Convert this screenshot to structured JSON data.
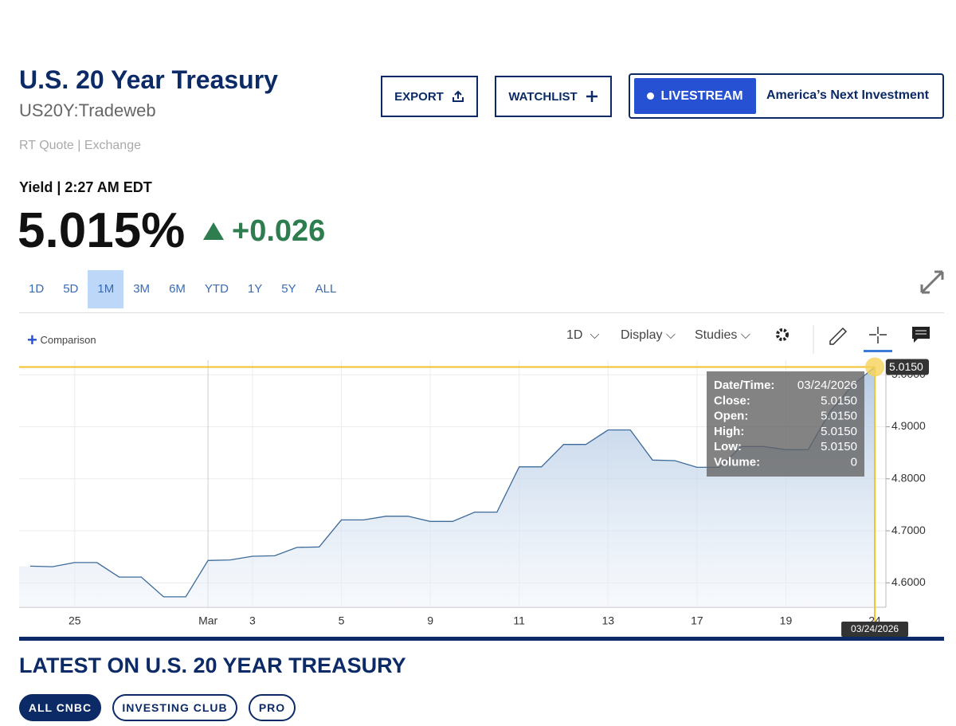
{
  "header": {
    "title": "U.S. 20 Year Treasury",
    "symbol": "US20Y:Tradeweb",
    "quote_source": "RT Quote | Exchange"
  },
  "buttons": {
    "export": "EXPORT",
    "watchlist": "WATCHLIST",
    "livestream": "LIVESTREAM",
    "promo": "America’s Next Investment"
  },
  "quote": {
    "label": "Yield | 2:27 AM EDT",
    "price": "5.015%",
    "change": "+0.026"
  },
  "ranges": [
    "1D",
    "5D",
    "1M",
    "3M",
    "6M",
    "YTD",
    "1Y",
    "5Y",
    "ALL"
  ],
  "active_range": "1M",
  "toolbar": {
    "comparison": "Comparison",
    "interval": "1D",
    "display": "Display",
    "studies": "Studies"
  },
  "chart_data": {
    "type": "line",
    "color": "#3d6b9a",
    "grid": true,
    "categories": [
      null,
      null,
      "25",
      null,
      null,
      null,
      null,
      null,
      "Mar",
      null,
      "3",
      null,
      null,
      null,
      "5",
      null,
      null,
      null,
      "9",
      null,
      null,
      null,
      "11",
      null,
      null,
      null,
      "13",
      null,
      null,
      null,
      "17",
      null,
      null,
      null,
      "19",
      null,
      null,
      null,
      "24"
    ],
    "values": [
      4.632,
      4.631,
      4.639,
      4.639,
      4.611,
      4.611,
      4.573,
      4.573,
      4.643,
      4.644,
      4.651,
      4.652,
      4.668,
      4.669,
      4.721,
      4.721,
      4.728,
      4.728,
      4.718,
      4.718,
      4.736,
      4.736,
      4.823,
      4.823,
      4.866,
      4.866,
      4.894,
      4.894,
      4.836,
      4.835,
      4.822,
      4.822,
      4.862,
      4.862,
      4.856,
      4.856,
      4.93,
      4.98,
      5.015
    ],
    "ylim": [
      4.553,
      5.028
    ],
    "yticks": [
      {
        "value": 4.6,
        "label": "4.6000"
      },
      {
        "value": 4.7,
        "label": "4.7000"
      },
      {
        "value": 4.8,
        "label": "4.8000"
      },
      {
        "value": 4.9,
        "label": "4.9000"
      },
      {
        "value": 5.0,
        "label": "5.0000"
      }
    ],
    "crosshair": {
      "value": 5.015,
      "label": "5.0150",
      "date": "03/24/2026"
    },
    "tooltip": [
      {
        "label": "Date/Time:",
        "value": "03/24/2026"
      },
      {
        "label": "Close:",
        "value": "5.0150"
      },
      {
        "label": "Open:",
        "value": "5.0150"
      },
      {
        "label": "High:",
        "value": "5.0150"
      },
      {
        "label": "Low:",
        "value": "5.0150"
      },
      {
        "label": "Volume:",
        "value": "0"
      }
    ]
  },
  "latest": {
    "title": "LATEST ON U.S. 20 YEAR TREASURY",
    "tabs": [
      "ALL CNBC",
      "INVESTING CLUB",
      "PRO"
    ]
  }
}
